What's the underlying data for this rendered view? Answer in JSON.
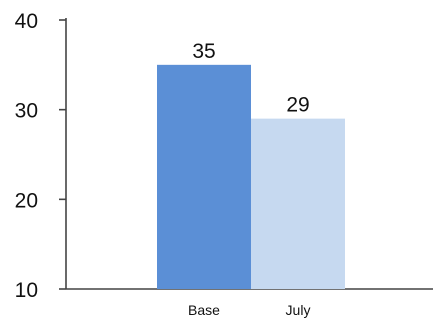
{
  "chart_data": {
    "type": "bar",
    "categories": [
      "Base",
      "July"
    ],
    "values": [
      35,
      29
    ],
    "data_labels": [
      "35",
      "29"
    ],
    "ylim": [
      10,
      40
    ],
    "yticks": [
      10,
      20,
      30,
      40
    ],
    "ytick_labels": [
      "10",
      "20",
      "30",
      "40"
    ],
    "title": "",
    "xlabel": "",
    "ylabel": "",
    "grid": false,
    "legend": "none",
    "colors": [
      "#5b8fd6",
      "#c6d9f0"
    ],
    "axis_color": "#444444"
  }
}
